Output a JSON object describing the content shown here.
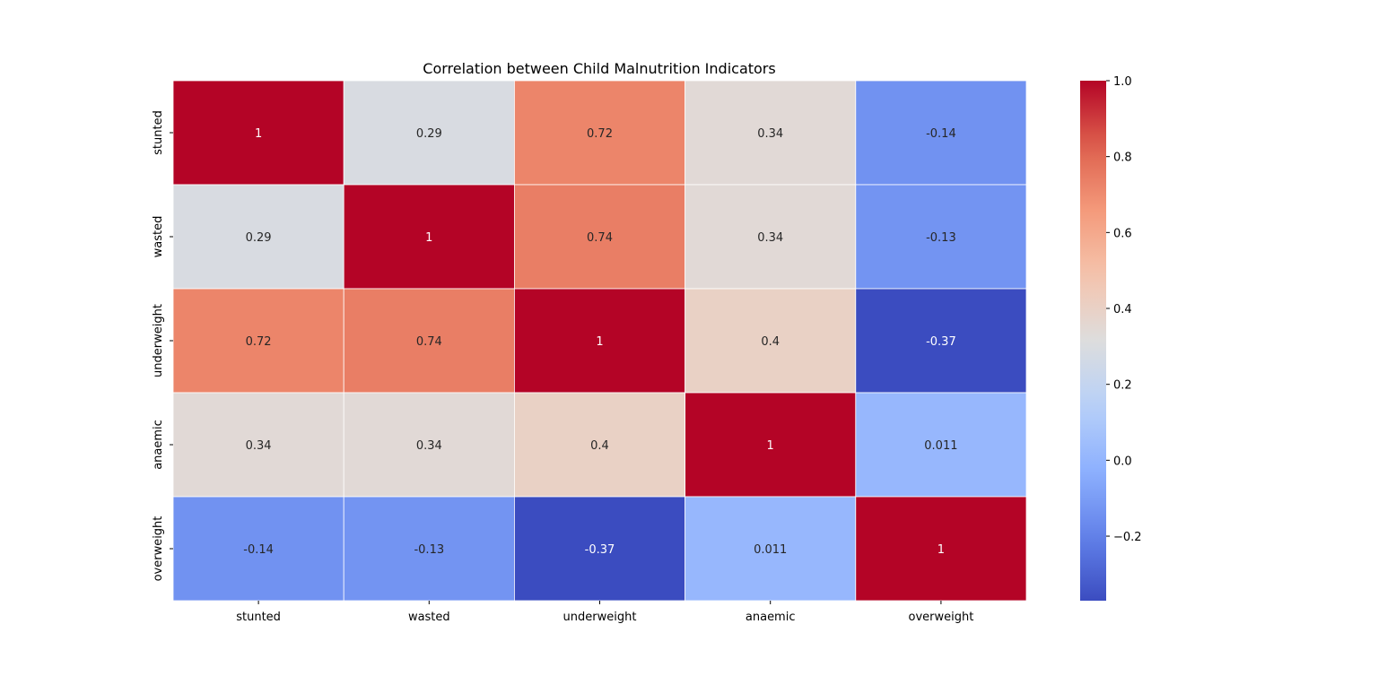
{
  "chart_data": {
    "type": "heatmap",
    "title": "Correlation between Child Malnutrition Indicators",
    "x_labels": [
      "stunted",
      "wasted",
      "underweight",
      "anaemic",
      "overweight"
    ],
    "y_labels": [
      "stunted",
      "wasted",
      "underweight",
      "anaemic",
      "overweight"
    ],
    "values": [
      [
        1,
        0.29,
        0.72,
        0.34,
        -0.14
      ],
      [
        0.29,
        1,
        0.74,
        0.34,
        -0.13
      ],
      [
        0.72,
        0.74,
        1,
        0.4,
        -0.37
      ],
      [
        0.34,
        0.34,
        0.4,
        1,
        0.011
      ],
      [
        -0.14,
        -0.13,
        -0.37,
        0.011,
        1
      ]
    ],
    "cell_labels": [
      [
        "1",
        "0.29",
        "0.72",
        "0.34",
        "-0.14"
      ],
      [
        "0.29",
        "1",
        "0.74",
        "0.34",
        "-0.13"
      ],
      [
        "0.72",
        "0.74",
        "1",
        "0.4",
        "-0.37"
      ],
      [
        "0.34",
        "0.34",
        "0.4",
        "1",
        "0.011"
      ],
      [
        "-0.14",
        "-0.13",
        "-0.37",
        "0.011",
        "1"
      ]
    ],
    "colormap": "coolwarm",
    "colorbar": {
      "range": [
        -0.37,
        1
      ],
      "ticks": [
        1.0,
        0.8,
        0.6,
        0.4,
        0.2,
        0.0,
        -0.2
      ],
      "tick_labels": [
        "1.0",
        "0.8",
        "0.6",
        "0.4",
        "0.2",
        "0.0",
        "−0.2"
      ]
    },
    "grid": false,
    "cell_border_color": "#ffffff"
  }
}
